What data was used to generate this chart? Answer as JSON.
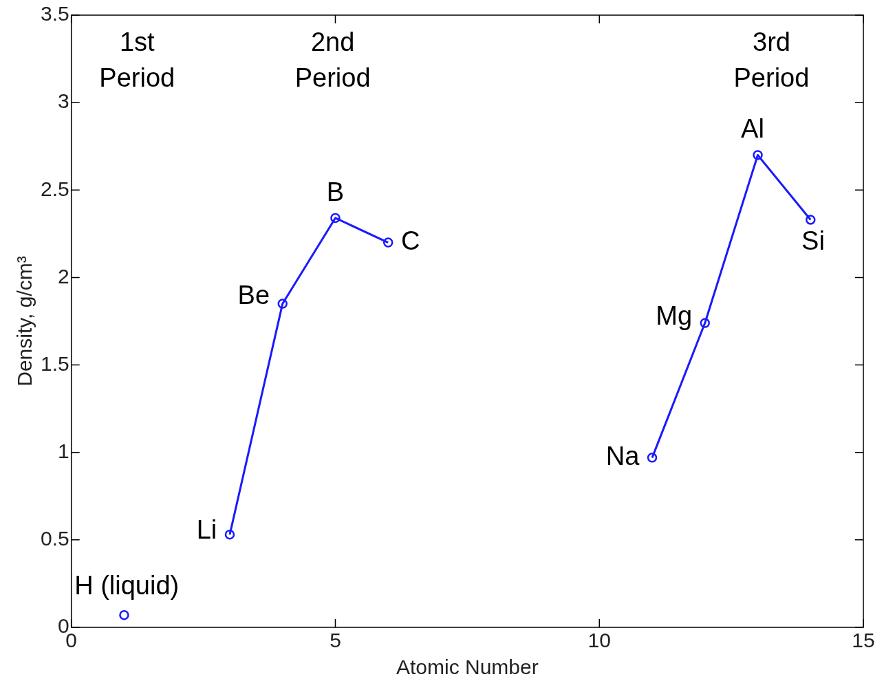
{
  "chart_data": {
    "type": "line",
    "xlabel": "Atomic Number",
    "ylabel": "Density, g/cm³",
    "xlim": [
      0,
      15
    ],
    "xticks": [
      0,
      5,
      10,
      15
    ],
    "ylim": [
      0,
      3.5
    ],
    "yticks": [
      0,
      0.5,
      1,
      1.5,
      2,
      2.5,
      3,
      3.5
    ],
    "grid": false,
    "legend": false,
    "marker": "circle",
    "line_style": "solid",
    "series": [
      {
        "color": "#1a1aff",
        "x": [
          1
        ],
        "values": [
          0.07
        ]
      },
      {
        "color": "#1a1aff",
        "x": [
          3,
          4,
          5,
          6
        ],
        "values": [
          0.53,
          1.85,
          2.34,
          2.2
        ]
      },
      {
        "color": "#1a1aff",
        "x": [
          11,
          12,
          13,
          14
        ],
        "values": [
          0.97,
          1.74,
          2.7,
          2.33
        ]
      }
    ],
    "annotations": [
      "1st Period",
      "2nd Period",
      "3rd Period",
      {
        "text": "H (liquid)",
        "x": 1,
        "y": 0.07
      },
      {
        "text": "Li",
        "x": 3,
        "y": 0.53
      },
      {
        "text": "Be",
        "x": 4,
        "y": 1.85
      },
      {
        "text": "B",
        "x": 5,
        "y": 2.34
      },
      {
        "text": "C",
        "x": 6,
        "y": 2.2
      },
      {
        "text": "Na",
        "x": 11,
        "y": 0.97
      },
      {
        "text": "Mg",
        "x": 12,
        "y": 1.74
      },
      {
        "text": "Al",
        "x": 13,
        "y": 2.7
      },
      {
        "text": "Si",
        "x": 14,
        "y": 2.33
      }
    ]
  }
}
